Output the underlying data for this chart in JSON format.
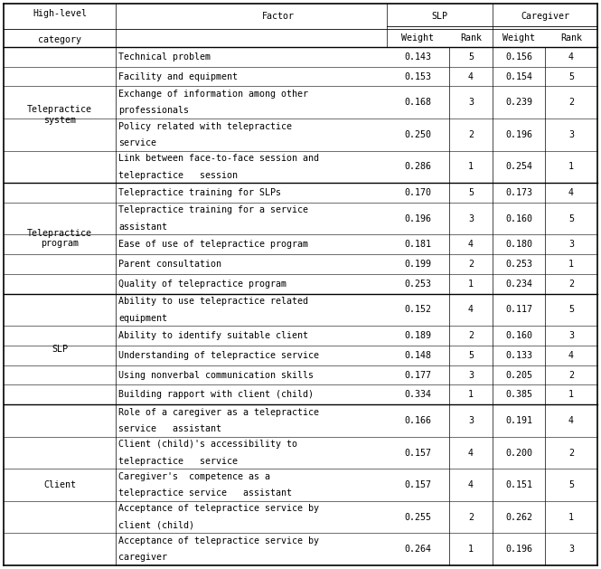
{
  "rows": [
    {
      "factor": "Technical problem",
      "slp_weight": "0.143",
      "slp_rank": "5",
      "cg_weight": "0.156",
      "cg_rank": "4",
      "two_line": false
    },
    {
      "factor": "Facility and equipment",
      "slp_weight": "0.153",
      "slp_rank": "4",
      "cg_weight": "0.154",
      "cg_rank": "5",
      "two_line": false
    },
    {
      "factor": "Exchange of information among other\nprofessionals",
      "slp_weight": "0.168",
      "slp_rank": "3",
      "cg_weight": "0.239",
      "cg_rank": "2",
      "two_line": true
    },
    {
      "factor": "Policy related with telepractice\nservice",
      "slp_weight": "0.250",
      "slp_rank": "2",
      "cg_weight": "0.196",
      "cg_rank": "3",
      "two_line": true
    },
    {
      "factor": "Link between face-to-face session and\ntelepractice   session",
      "slp_weight": "0.286",
      "slp_rank": "1",
      "cg_weight": "0.254",
      "cg_rank": "1",
      "two_line": true
    },
    {
      "factor": "Telepractice training for SLPs",
      "slp_weight": "0.170",
      "slp_rank": "5",
      "cg_weight": "0.173",
      "cg_rank": "4",
      "two_line": false
    },
    {
      "factor": "Telepractice training for a service\nassistant",
      "slp_weight": "0.196",
      "slp_rank": "3",
      "cg_weight": "0.160",
      "cg_rank": "5",
      "two_line": true
    },
    {
      "factor": "Ease of use of telepractice program",
      "slp_weight": "0.181",
      "slp_rank": "4",
      "cg_weight": "0.180",
      "cg_rank": "3",
      "two_line": false
    },
    {
      "factor": "Parent consultation",
      "slp_weight": "0.199",
      "slp_rank": "2",
      "cg_weight": "0.253",
      "cg_rank": "1",
      "two_line": false
    },
    {
      "factor": "Quality of telepractice program",
      "slp_weight": "0.253",
      "slp_rank": "1",
      "cg_weight": "0.234",
      "cg_rank": "2",
      "two_line": false
    },
    {
      "factor": "Ability to use telepractice related\nequipment",
      "slp_weight": "0.152",
      "slp_rank": "4",
      "cg_weight": "0.117",
      "cg_rank": "5",
      "two_line": true
    },
    {
      "factor": "Ability to identify suitable client",
      "slp_weight": "0.189",
      "slp_rank": "2",
      "cg_weight": "0.160",
      "cg_rank": "3",
      "two_line": false
    },
    {
      "factor": "Understanding of telepractice service",
      "slp_weight": "0.148",
      "slp_rank": "5",
      "cg_weight": "0.133",
      "cg_rank": "4",
      "two_line": false
    },
    {
      "factor": "Using nonverbal communication skills",
      "slp_weight": "0.177",
      "slp_rank": "3",
      "cg_weight": "0.205",
      "cg_rank": "2",
      "two_line": false
    },
    {
      "factor": "Building rapport with client (child)",
      "slp_weight": "0.334",
      "slp_rank": "1",
      "cg_weight": "0.385",
      "cg_rank": "1",
      "two_line": false
    },
    {
      "factor": "Role of a caregiver as a telepractice\nservice   assistant",
      "slp_weight": "0.166",
      "slp_rank": "3",
      "cg_weight": "0.191",
      "cg_rank": "4",
      "two_line": true
    },
    {
      "factor": "Client (child)'s accessibility to\ntelepractice   service",
      "slp_weight": "0.157",
      "slp_rank": "4",
      "cg_weight": "0.200",
      "cg_rank": "2",
      "two_line": true
    },
    {
      "factor": "Caregiver's  competence as a\ntelepractice service   assistant",
      "slp_weight": "0.157",
      "slp_rank": "4",
      "cg_weight": "0.151",
      "cg_rank": "5",
      "two_line": true
    },
    {
      "factor": "Acceptance of telepractice service by\nclient (child)",
      "slp_weight": "0.255",
      "slp_rank": "2",
      "cg_weight": "0.262",
      "cg_rank": "1",
      "two_line": true
    },
    {
      "factor": "Acceptance of telepractice service by\ncaregiver",
      "slp_weight": "0.264",
      "slp_rank": "1",
      "cg_weight": "0.196",
      "cg_rank": "3",
      "two_line": true
    }
  ],
  "cat_row_map": [
    {
      "cat": "Telepractice\nsystem",
      "start": 0,
      "end": 4
    },
    {
      "cat": "Telepractice\nprogram",
      "start": 5,
      "end": 9
    },
    {
      "cat": "SLP",
      "start": 10,
      "end": 14
    },
    {
      "cat": "Client",
      "start": 15,
      "end": 19
    }
  ],
  "section_ends": [
    4,
    9,
    14
  ],
  "bg_color": "#ffffff",
  "text_color": "#000000",
  "font_size": 7.2,
  "font_family": "monospace"
}
